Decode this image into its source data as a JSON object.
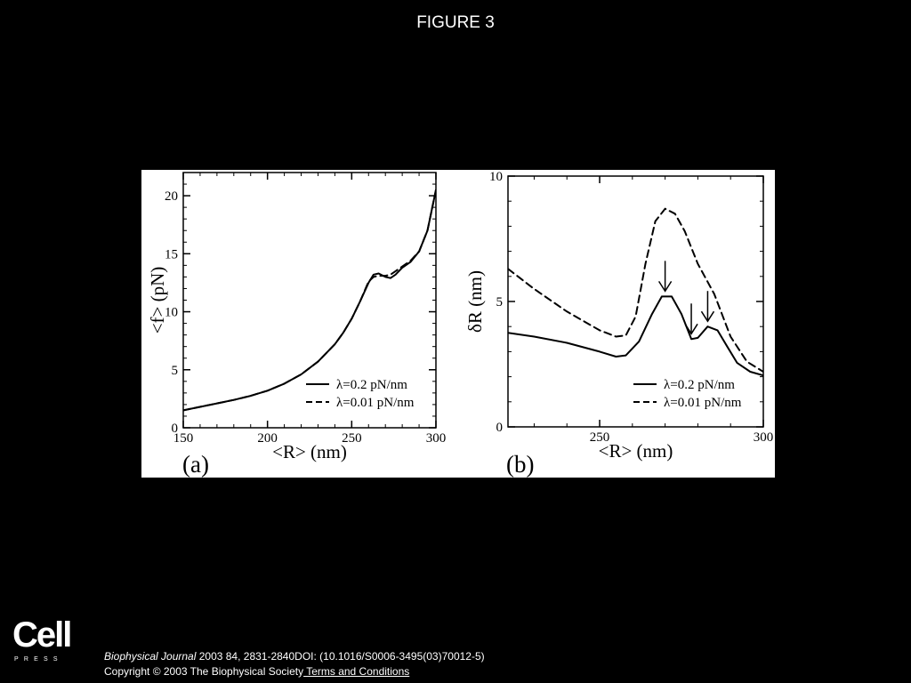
{
  "slide": {
    "title": "FIGURE 3",
    "citation_journal": "Biophysical Journal",
    "citation_rest": " 2003 84, 2831-2840DOI: (10.1016/S0006-3495(03)70012-5)",
    "copyright": "Copyright © 2003 The Biophysical Society",
    "terms_link": " Terms and Conditions",
    "logo_cell": "Cell",
    "logo_press": "PRESS"
  },
  "colors": {
    "background": "#000000",
    "figure_bg": "#ffffff",
    "lines": "#000000"
  },
  "chart_data": [
    {
      "panel_label": "(a)",
      "type": "line",
      "xlabel": "<R> (nm)",
      "ylabel": "<f> (pN)",
      "xlim": [
        150,
        300
      ],
      "ylim": [
        0,
        22
      ],
      "xticks": [
        150,
        200,
        250,
        300
      ],
      "yticks": [
        0,
        5,
        10,
        15,
        20
      ],
      "legend": "bottom-right",
      "series": [
        {
          "name": "λ=0.2 pN/nm",
          "style": "solid",
          "x": [
            150,
            160,
            170,
            180,
            190,
            200,
            210,
            220,
            230,
            240,
            245,
            250,
            255,
            260,
            263,
            266,
            270,
            273,
            276,
            280,
            285,
            290,
            295,
            300
          ],
          "y": [
            1.5,
            1.8,
            2.1,
            2.4,
            2.75,
            3.2,
            3.8,
            4.6,
            5.7,
            7.2,
            8.2,
            9.4,
            10.9,
            12.5,
            13.2,
            13.3,
            13.0,
            12.9,
            13.2,
            13.8,
            14.3,
            15.2,
            17.0,
            20.5
          ]
        },
        {
          "name": "λ=0.01 pN/nm",
          "style": "dashed",
          "x": [
            150,
            160,
            170,
            180,
            190,
            200,
            210,
            220,
            230,
            240,
            245,
            250,
            255,
            260,
            263,
            266,
            270,
            273,
            276,
            280,
            285,
            290,
            295,
            300
          ],
          "y": [
            1.5,
            1.8,
            2.1,
            2.4,
            2.75,
            3.2,
            3.8,
            4.6,
            5.7,
            7.2,
            8.2,
            9.4,
            10.9,
            12.6,
            13.0,
            13.1,
            13.1,
            13.2,
            13.5,
            13.9,
            14.4,
            15.2,
            17.0,
            20.5
          ]
        }
      ]
    },
    {
      "panel_label": "(b)",
      "type": "line",
      "xlabel": "<R> (nm)",
      "ylabel": "δR (nm)",
      "xlim": [
        222,
        300
      ],
      "ylim": [
        0,
        10
      ],
      "xticks": [
        250,
        300
      ],
      "yticks": [
        0,
        5,
        10
      ],
      "legend": "bottom-right",
      "series": [
        {
          "name": "λ=0.2 pN/nm",
          "style": "solid",
          "x": [
            222,
            230,
            240,
            250,
            255,
            258,
            262,
            266,
            269,
            272,
            275,
            278,
            280,
            283,
            286,
            289,
            292,
            296,
            300
          ],
          "y": [
            3.75,
            3.6,
            3.35,
            3.0,
            2.8,
            2.85,
            3.4,
            4.5,
            5.2,
            5.2,
            4.5,
            3.5,
            3.55,
            4.0,
            3.85,
            3.2,
            2.55,
            2.2,
            2.05
          ]
        },
        {
          "name": "λ=0.01 pN/nm",
          "style": "dashed",
          "x": [
            222,
            230,
            240,
            250,
            255,
            258,
            261,
            264,
            267,
            270,
            273,
            276,
            280,
            285,
            290,
            295,
            300
          ],
          "y": [
            6.3,
            5.5,
            4.6,
            3.85,
            3.6,
            3.65,
            4.4,
            6.5,
            8.2,
            8.7,
            8.5,
            7.8,
            6.5,
            5.3,
            3.6,
            2.6,
            2.2
          ]
        }
      ],
      "arrows_at": [
        {
          "x": 270,
          "y": 5.2
        },
        {
          "x": 278,
          "y": 3.5
        },
        {
          "x": 283,
          "y": 4.0
        }
      ]
    }
  ]
}
